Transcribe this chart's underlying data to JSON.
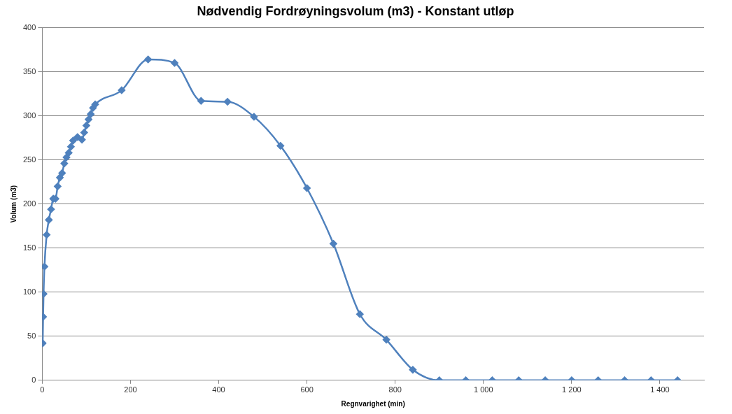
{
  "chart_data": {
    "type": "line",
    "title": "Nødvendig Fordrøyningsvolum (m3) - Konstant utløp",
    "xlabel": "Regnvarighet (min)",
    "ylabel": "Volum (m3)",
    "x": [
      1,
      2,
      3,
      5,
      10,
      15,
      20,
      25,
      30,
      35,
      40,
      45,
      50,
      55,
      60,
      65,
      70,
      80,
      90,
      95,
      100,
      105,
      110,
      115,
      120,
      180,
      240,
      300,
      360,
      420,
      480,
      540,
      600,
      660,
      720,
      780,
      840,
      900,
      960,
      1020,
      1080,
      1140,
      1200,
      1260,
      1320,
      1380,
      1440
    ],
    "series": [
      {
        "color": "#4f81bd",
        "values": [
          42,
          72,
          98,
          129,
          165,
          182,
          194,
          206,
          206,
          220,
          230,
          235,
          246,
          253,
          258,
          265,
          272,
          276,
          273,
          281,
          289,
          296,
          302,
          309,
          313,
          329,
          364,
          360,
          317,
          316,
          299,
          266,
          218,
          155,
          75,
          46,
          12,
          0,
          0,
          0,
          0,
          0,
          0,
          0,
          0,
          0,
          0
        ]
      }
    ],
    "xlim": [
      0,
      1500
    ],
    "xticks": [
      0,
      200,
      400,
      600,
      800,
      {
        "value": 1000,
        "label": "1 000"
      },
      {
        "value": 1200,
        "label": "1 200"
      },
      {
        "value": 1400,
        "label": "1 400"
      }
    ],
    "ylim": [
      0,
      400
    ],
    "yticks": [
      0,
      50,
      100,
      150,
      200,
      250,
      300,
      350,
      400
    ],
    "grid": "y",
    "legend": false,
    "marker": "diamond",
    "line_style": "solid"
  }
}
